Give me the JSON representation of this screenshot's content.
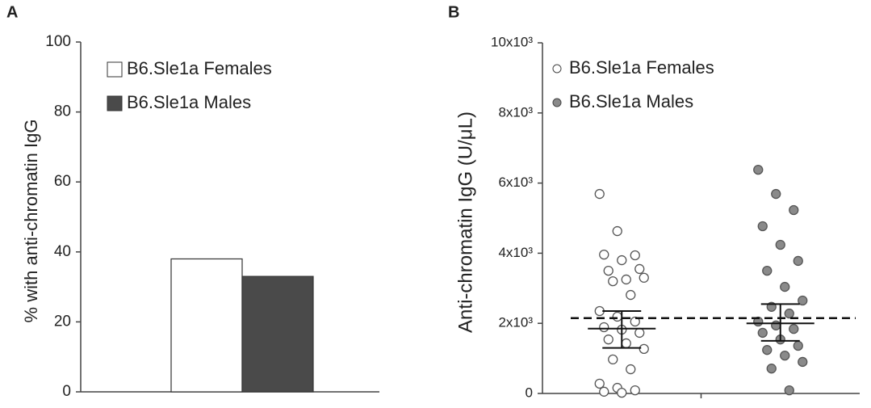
{
  "chart_data": [
    {
      "type": "bar",
      "panel": "A",
      "ylabel": "% with anti-chromatin IgG",
      "ylim": [
        0,
        100
      ],
      "yticks": [
        0,
        20,
        40,
        60,
        80,
        100
      ],
      "series": [
        {
          "name": "B6.Sle1a Females",
          "color": "#ffffff",
          "values": [
            38
          ]
        },
        {
          "name": "B6.Sle1a Males",
          "color": "#4a4a4a",
          "values": [
            33
          ]
        }
      ]
    },
    {
      "type": "dotplot",
      "panel": "B",
      "ylabel": "Anti-chromatin IgG (U/μL)",
      "ylim": [
        0,
        10000
      ],
      "yticks": [
        0,
        {
          "value": 2000,
          "label": "2x10³"
        },
        {
          "value": 4000,
          "label": "4x10³"
        },
        {
          "value": 6000,
          "label": "6x10³"
        },
        {
          "value": 8000,
          "label": "8x10³"
        },
        {
          "value": 10000,
          "label": "10x10³"
        }
      ],
      "threshold": 2150,
      "series": [
        {
          "name": "B6.Sle1a Females",
          "color": "#ffffff",
          "mean": 1850,
          "error_bar": [
            1300,
            2350
          ],
          "values": [
            5690,
            4630,
            3940,
            3960,
            3800,
            3550,
            3500,
            3250,
            3300,
            3200,
            2810,
            2350,
            2190,
            2050,
            1890,
            1820,
            1730,
            1540,
            1430,
            1270,
            970,
            690,
            280,
            160,
            90,
            50,
            20
          ]
        },
        {
          "name": "B6.Sle1a Males",
          "color": "#8a8a8a",
          "mean": 2000,
          "error_bar": [
            1500,
            2550
          ],
          "values": [
            6380,
            5690,
            5230,
            4770,
            4240,
            3780,
            3500,
            3040,
            2650,
            2470,
            2280,
            2050,
            1940,
            1840,
            1730,
            1540,
            1360,
            1240,
            1080,
            900,
            710,
            90
          ]
        }
      ]
    }
  ]
}
